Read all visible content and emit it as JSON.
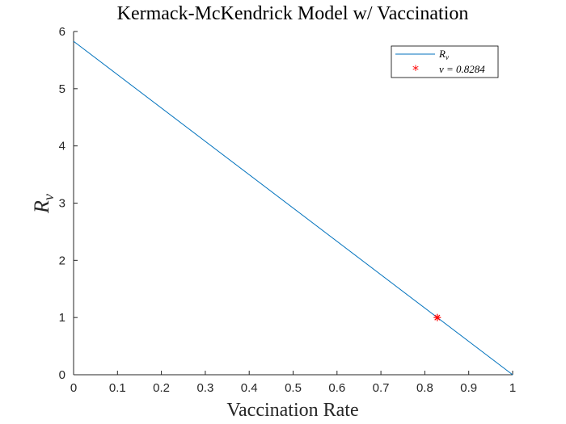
{
  "chart_data": {
    "type": "line",
    "title": "Kermack-McKendrick Model w/ Vaccination",
    "xlabel": "Vaccination Rate",
    "ylabel": {
      "main": "R",
      "sub": "v"
    },
    "xlim": [
      0,
      1
    ],
    "ylim": [
      0,
      6
    ],
    "xticks": [
      0,
      0.1,
      0.2,
      0.3,
      0.4,
      0.5,
      0.6,
      0.7,
      0.8,
      0.9,
      1
    ],
    "yticks": [
      0,
      1,
      2,
      3,
      4,
      5,
      6
    ],
    "xtick_labels": [
      "0",
      "0.1",
      "0.2",
      "0.3",
      "0.4",
      "0.5",
      "0.6",
      "0.7",
      "0.8",
      "0.9",
      "1"
    ],
    "ytick_labels": [
      "0",
      "1",
      "2",
      "3",
      "4",
      "5",
      "6"
    ],
    "grid": false,
    "legend_position": "top-right",
    "series": [
      {
        "name": "R_v",
        "legend_main": "R",
        "legend_sub": "v",
        "color": "#0072BD",
        "x": [
          0,
          1
        ],
        "y": [
          5.8284,
          0
        ]
      }
    ],
    "marker": {
      "legend_label": "v = 0.8284",
      "color": "#FF0000",
      "x": 0.8284,
      "y": 1.0
    }
  }
}
